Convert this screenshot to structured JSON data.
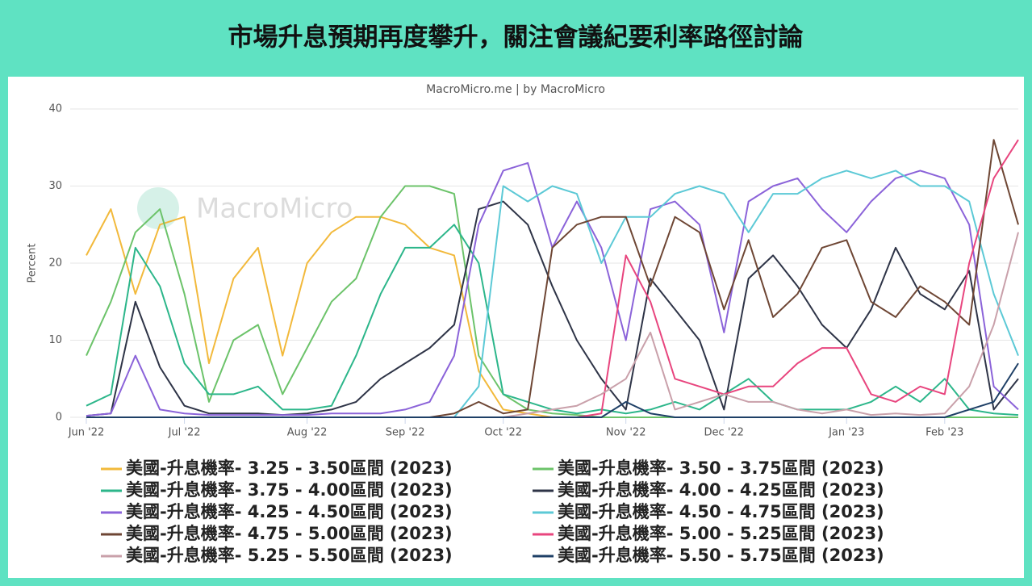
{
  "chart_data": {
    "type": "line",
    "title": "市場升息預期再度攀升，關注會議紀要利率路徑討論",
    "subtitle": "MacroMicro.me | by MacroMicro",
    "watermark": "MacroMicro",
    "y_label": "Percent",
    "categories": [
      "Jun '22",
      null,
      null,
      null,
      "Jul '22",
      null,
      null,
      null,
      null,
      "Aug '22",
      null,
      null,
      null,
      "Sep '22",
      null,
      null,
      null,
      "Oct '22",
      null,
      null,
      null,
      null,
      "Nov '22",
      null,
      null,
      null,
      "Dec '22",
      null,
      null,
      null,
      null,
      "Jan '23",
      null,
      null,
      null,
      "Feb '23",
      null,
      null,
      null
    ],
    "ylim": [
      0,
      40
    ],
    "yticks": [
      0,
      10,
      20,
      30,
      40
    ],
    "grid": true,
    "series": [
      {
        "name": "美國-升息機率- 3.25 - 3.50區間 (2023)",
        "color": "#f2b93b",
        "values": [
          21,
          27,
          16,
          25,
          26,
          7,
          18,
          22,
          8,
          20,
          24,
          26,
          26,
          25,
          22,
          21,
          6,
          1,
          0.5,
          0,
          0,
          0,
          0,
          0,
          0,
          0,
          0,
          0,
          0,
          0,
          0,
          0,
          0,
          0,
          0,
          0,
          0,
          0,
          0
        ]
      },
      {
        "name": "美國-升息機率- 3.50 - 3.75區間 (2023)",
        "color": "#6cc36a",
        "values": [
          8,
          15,
          24,
          27,
          16,
          2,
          10,
          12,
          3,
          9,
          15,
          18,
          26,
          30,
          30,
          29,
          8,
          3,
          1,
          0.5,
          0.3,
          0,
          0,
          0,
          0,
          0,
          0,
          0,
          0,
          0,
          0,
          0,
          0,
          0,
          0,
          0,
          0,
          0,
          0
        ]
      },
      {
        "name": "美國-升息機率- 3.75 - 4.00區間 (2023)",
        "color": "#2cb68a",
        "values": [
          1.5,
          3,
          22,
          17,
          7,
          3,
          3,
          4,
          1,
          1,
          1.5,
          8,
          16,
          22,
          22,
          25,
          20,
          3,
          2,
          1,
          0.5,
          1,
          0.5,
          1,
          2,
          1,
          3,
          5,
          2,
          1,
          1,
          1,
          2,
          4,
          2,
          5,
          1,
          0.5,
          0.3
        ]
      },
      {
        "name": "美國-升息機率- 4.00 - 4.25區間 (2023)",
        "color": "#2e3447",
        "values": [
          0.2,
          0.5,
          15,
          6.5,
          1.5,
          0.5,
          0.5,
          0.5,
          0.3,
          0.5,
          1,
          2,
          5,
          7,
          9,
          12,
          27,
          28,
          25,
          17,
          10,
          5,
          1,
          18,
          14,
          10,
          1,
          18,
          21,
          17,
          12,
          9,
          14,
          22,
          16,
          14,
          19,
          1,
          5
        ]
      },
      {
        "name": "美國-升息機率- 4.25 - 4.50區間 (2023)",
        "color": "#8b63d9",
        "values": [
          0.2,
          0.5,
          8,
          1,
          0.5,
          0.3,
          0.3,
          0.3,
          0.3,
          0.3,
          0.5,
          0.5,
          0.5,
          1,
          2,
          8,
          25,
          32,
          33,
          22,
          28,
          22,
          10,
          27,
          28,
          25,
          11,
          28,
          30,
          31,
          27,
          24,
          28,
          31,
          32,
          31,
          25,
          4,
          1
        ]
      },
      {
        "name": "美國-升息機率- 4.50 - 4.75區間 (2023)",
        "color": "#5cc9d6",
        "values": [
          0,
          0,
          0,
          0,
          0,
          0,
          0,
          0,
          0,
          0,
          0,
          0,
          0,
          0,
          0,
          0,
          4,
          30,
          28,
          30,
          29,
          20,
          26,
          26,
          29,
          30,
          29,
          24,
          29,
          29,
          31,
          32,
          31,
          32,
          30,
          30,
          28,
          16,
          8
        ]
      },
      {
        "name": "美國-升息機率- 4.75 - 5.00區間 (2023)",
        "color": "#6e4634",
        "values": [
          0,
          0,
          0,
          0,
          0,
          0,
          0,
          0,
          0,
          0,
          0,
          0,
          0,
          0,
          0,
          0.5,
          2,
          0.5,
          1,
          22,
          25,
          26,
          26,
          17,
          26,
          24,
          14,
          23,
          13,
          16,
          22,
          23,
          15,
          13,
          17,
          15,
          12,
          36,
          25
        ]
      },
      {
        "name": "美國-升息機率- 5.00 - 5.25區間 (2023)",
        "color": "#e8457e",
        "values": [
          0,
          0,
          0,
          0,
          0,
          0,
          0,
          0,
          0,
          0,
          0,
          0,
          0,
          0,
          0,
          0,
          0,
          0,
          0,
          0,
          0,
          0.5,
          21,
          15,
          5,
          4,
          3,
          4,
          4,
          7,
          9,
          9,
          3,
          2,
          4,
          3,
          20,
          31,
          36
        ]
      },
      {
        "name": "美國-升息機率- 5.25 - 5.50區間 (2023)",
        "color": "#c9a0aa",
        "values": [
          0,
          0,
          0,
          0,
          0,
          0,
          0,
          0,
          0,
          0,
          0,
          0,
          0,
          0,
          0,
          0,
          0,
          0,
          0.5,
          1,
          1.5,
          3,
          5,
          11,
          1,
          2,
          3,
          2,
          2,
          1,
          0.5,
          1,
          0.3,
          0.5,
          0.3,
          0.5,
          4,
          12,
          24
        ]
      },
      {
        "name": "美國-升息機率- 5.50 - 5.75區間 (2023)",
        "color": "#1e3f66",
        "values": [
          0,
          0,
          0,
          0,
          0,
          0,
          0,
          0,
          0,
          0,
          0,
          0,
          0,
          0,
          0,
          0,
          0,
          0,
          0,
          0,
          0,
          0,
          2,
          0.5,
          0,
          0,
          0,
          0,
          0,
          0,
          0,
          0,
          0,
          0,
          0,
          0,
          1,
          2,
          7
        ]
      }
    ]
  }
}
